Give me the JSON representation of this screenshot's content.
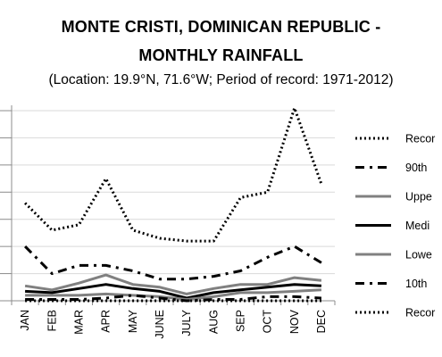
{
  "chart_data": {
    "type": "line",
    "title": "MONTE CRISTI, DOMINICAN REPUBLIC - MONTHLY RAINFALL",
    "title_lines": [
      "MONTE CRISTI, DOMINICAN REPUBLIC -",
      "MONTHLY RAINFALL"
    ],
    "subtitle": "(Location: 19.9°N, 71.6°W; Period of record: 1971-2012)",
    "categories": [
      "JAN",
      "FEB",
      "MAR",
      "APR",
      "MAY",
      "JUNE",
      "JULY",
      "AUG",
      "SEP",
      "OCT",
      "NOV",
      "DEC"
    ],
    "ylim": [
      0,
      7
    ],
    "grid": true,
    "legend_position": "right",
    "series": [
      {
        "name": "Recor",
        "style": "dotted",
        "color": "#000000",
        "values": [
          3.6,
          2.6,
          2.8,
          4.5,
          2.6,
          2.3,
          2.2,
          2.2,
          3.8,
          4.0,
          7.1,
          4.3
        ]
      },
      {
        "name": "90th",
        "style": "dashdot",
        "color": "#000000",
        "values": [
          2.0,
          1.0,
          1.3,
          1.3,
          1.1,
          0.8,
          0.8,
          0.9,
          1.1,
          1.6,
          2.0,
          1.4
        ]
      },
      {
        "name": "Uppe",
        "style": "solid",
        "color": "#808080",
        "values": [
          0.55,
          0.4,
          0.65,
          0.95,
          0.6,
          0.5,
          0.25,
          0.45,
          0.6,
          0.6,
          0.85,
          0.75
        ]
      },
      {
        "name": "Medi",
        "style": "solid",
        "color": "#000000",
        "values": [
          0.35,
          0.3,
          0.45,
          0.6,
          0.45,
          0.35,
          0.1,
          0.3,
          0.4,
          0.5,
          0.6,
          0.55
        ]
      },
      {
        "name": "Lowe",
        "style": "solid",
        "color": "#808080",
        "values": [
          0.2,
          0.2,
          0.2,
          0.25,
          0.2,
          0.15,
          0.05,
          0.15,
          0.3,
          0.3,
          0.35,
          0.4
        ]
      },
      {
        "name": "10th",
        "style": "dashdot",
        "color": "#000000",
        "values": [
          0.05,
          0.05,
          0.05,
          0.1,
          0.2,
          0.1,
          0.0,
          0.05,
          0.05,
          0.15,
          0.15,
          0.1
        ]
      },
      {
        "name": "Recor",
        "style": "dotted",
        "color": "#000000",
        "values": [
          0.0,
          0.0,
          0.0,
          0.0,
          0.0,
          0.0,
          0.0,
          0.0,
          0.0,
          0.0,
          0.0,
          0.0
        ]
      }
    ]
  }
}
